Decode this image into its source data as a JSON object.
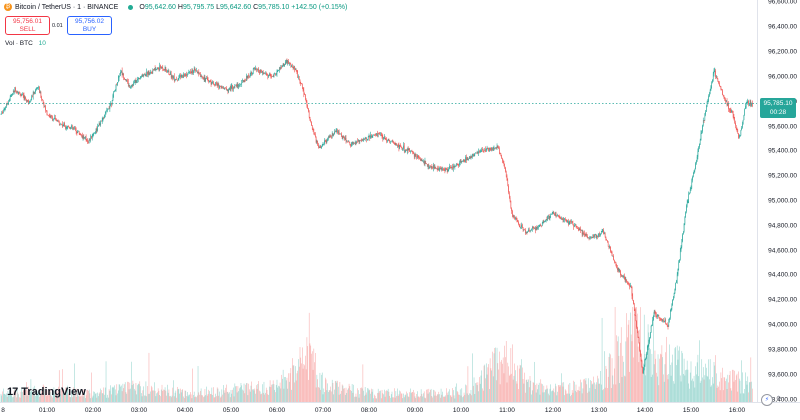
{
  "legend": {
    "symbol": "Bitcoin / TetherUS · 1 · BINANCE",
    "o_label": "O",
    "o": "95,642.60",
    "h_label": "H",
    "h": "95,795.75",
    "l_label": "L",
    "l": "95,642.60",
    "c_label": "C",
    "c": "95,785.10",
    "change": "+142.50 (+0.15%)"
  },
  "trade": {
    "sell_price": "95,756.01",
    "sell_label": "SELL",
    "spread": "0.01",
    "buy_price": "95,756.02",
    "buy_label": "BUY"
  },
  "volume_legend": {
    "label": "Vol · BTC",
    "value": "10"
  },
  "current_price": {
    "price": "95,785.10",
    "countdown": "00:28"
  },
  "watermark": "TradingView",
  "colors": {
    "up": "#26a69a",
    "down": "#ef5350",
    "price_line": "#26a69a"
  },
  "chart_data": {
    "type": "candlestick",
    "symbol": "Bitcoin / TetherUS",
    "interval": "1",
    "exchange": "BINANCE",
    "y_ticks": [
      93400,
      93600,
      93800,
      94000,
      94200,
      94400,
      94600,
      94800,
      95000,
      95200,
      95400,
      95600,
      95800,
      96000,
      96200,
      96400,
      96600
    ],
    "y_tick_labels": [
      "93,400.00",
      "93,600.00",
      "93,800.00",
      "94,000.00",
      "94,200.00",
      "94,400.00",
      "94,600.00",
      "94,800.00",
      "95,000.00",
      "95,200.00",
      "95,400.00",
      "95,600.00",
      "95,800.00",
      "96,000.00",
      "96,200.00",
      "96,400.00",
      "96,600.00"
    ],
    "ylim": [
      93380,
      96620
    ],
    "x_ticks": [
      "01:00",
      "02:00",
      "03:00",
      "04:00",
      "05:00",
      "06:00",
      "07:00",
      "08:00",
      "09:00",
      "10:00",
      "11:00",
      "12:00",
      "13:00",
      "14:00",
      "15:00",
      "16:00"
    ],
    "x_first_label": "8",
    "xlim_hours": [
      0.0,
      16.6
    ],
    "price_path": [
      [
        0.0,
        95700
      ],
      [
        0.3,
        95900
      ],
      [
        0.6,
        95800
      ],
      [
        0.8,
        95920
      ],
      [
        1.0,
        95700
      ],
      [
        1.3,
        95620
      ],
      [
        1.6,
        95580
      ],
      [
        1.9,
        95480
      ],
      [
        2.2,
        95650
      ],
      [
        2.4,
        95800
      ],
      [
        2.6,
        96050
      ],
      [
        2.8,
        95920
      ],
      [
        3.1,
        96020
      ],
      [
        3.5,
        96080
      ],
      [
        3.8,
        95980
      ],
      [
        4.2,
        96050
      ],
      [
        4.5,
        95970
      ],
      [
        4.9,
        95900
      ],
      [
        5.2,
        95940
      ],
      [
        5.5,
        96060
      ],
      [
        5.9,
        96000
      ],
      [
        6.2,
        96120
      ],
      [
        6.4,
        96060
      ],
      [
        6.6,
        95860
      ],
      [
        6.75,
        95600
      ],
      [
        6.9,
        95430
      ],
      [
        7.3,
        95560
      ],
      [
        7.6,
        95460
      ],
      [
        7.9,
        95500
      ],
      [
        8.2,
        95540
      ],
      [
        8.6,
        95450
      ],
      [
        8.9,
        95400
      ],
      [
        9.3,
        95280
      ],
      [
        9.7,
        95250
      ],
      [
        10.0,
        95310
      ],
      [
        10.4,
        95400
      ],
      [
        10.8,
        95430
      ],
      [
        10.95,
        95280
      ],
      [
        11.1,
        94900
      ],
      [
        11.4,
        94750
      ],
      [
        11.7,
        94800
      ],
      [
        12.0,
        94900
      ],
      [
        12.4,
        94820
      ],
      [
        12.8,
        94700
      ],
      [
        13.1,
        94750
      ],
      [
        13.4,
        94450
      ],
      [
        13.7,
        94300
      ],
      [
        13.95,
        93620
      ],
      [
        14.2,
        94100
      ],
      [
        14.5,
        94000
      ],
      [
        14.7,
        94400
      ],
      [
        14.9,
        94950
      ],
      [
        15.1,
        95300
      ],
      [
        15.3,
        95700
      ],
      [
        15.5,
        96050
      ],
      [
        15.7,
        95850
      ],
      [
        15.9,
        95700
      ],
      [
        16.05,
        95500
      ],
      [
        16.2,
        95800
      ],
      [
        16.35,
        95780
      ]
    ],
    "current_price": 95785.1,
    "volume_axis_max": 3.3,
    "volume_profile": [
      [
        0.0,
        0.3
      ],
      [
        1.0,
        0.4
      ],
      [
        2.0,
        0.3
      ],
      [
        3.0,
        0.5
      ],
      [
        4.0,
        0.3
      ],
      [
        5.0,
        0.4
      ],
      [
        6.0,
        0.5
      ],
      [
        6.7,
        1.6
      ],
      [
        7.0,
        0.6
      ],
      [
        8.0,
        0.3
      ],
      [
        9.0,
        0.3
      ],
      [
        10.0,
        0.3
      ],
      [
        11.0,
        1.5
      ],
      [
        11.5,
        0.6
      ],
      [
        12.0,
        0.4
      ],
      [
        13.0,
        0.6
      ],
      [
        13.9,
        2.6
      ],
      [
        14.2,
        1.4
      ],
      [
        14.8,
        1.2
      ],
      [
        15.3,
        1.0
      ],
      [
        15.8,
        0.8
      ],
      [
        16.3,
        0.6
      ]
    ]
  }
}
